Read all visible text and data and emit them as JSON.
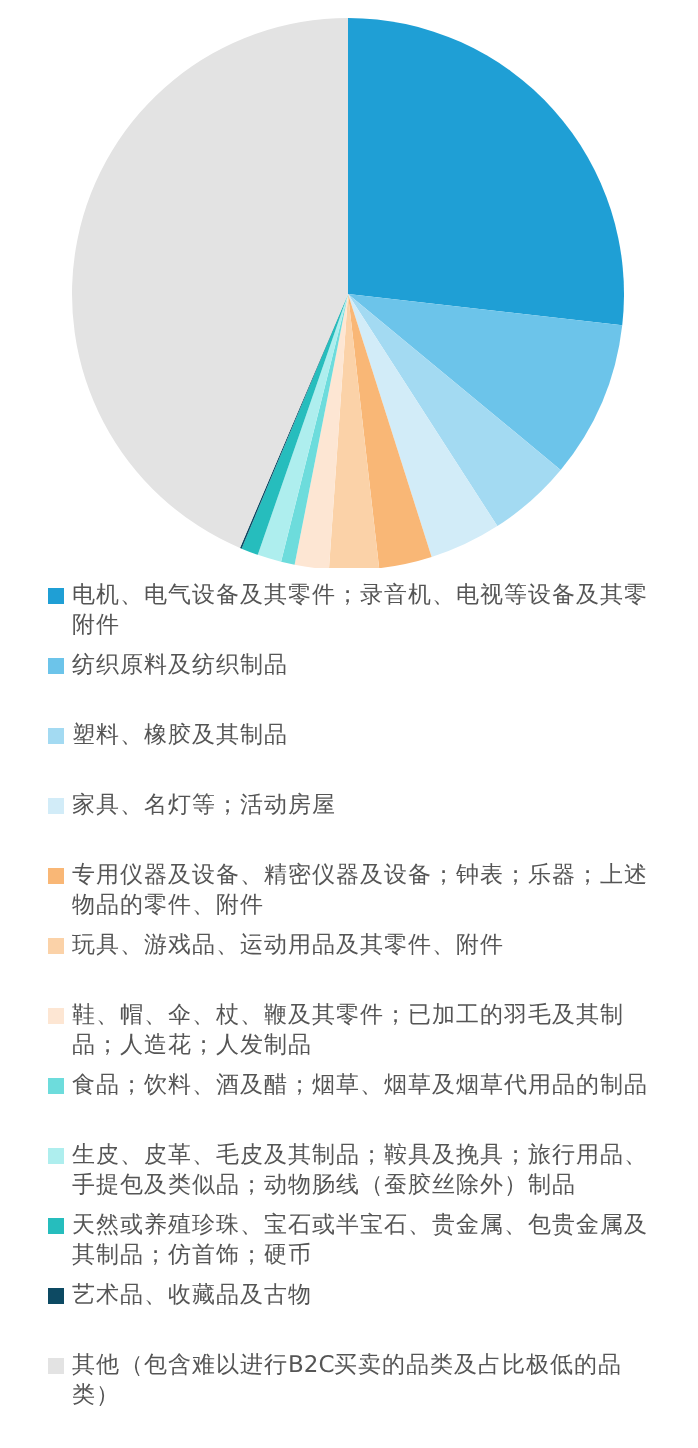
{
  "chart_data": {
    "type": "pie",
    "legend": "bottom",
    "categories": [
      "电机、电气设备及其零件；录音机、电视等设备及其零附件",
      "纺织原料及纺织制品",
      "塑料、橡胶及其制品",
      "家具、名灯等；活动房屋",
      "专用仪器及设备、精密仪器及设备；钟表；乐器；上述物品的零件、附件",
      "玩具、游戏品、运动用品及其零件、附件",
      "鞋、帽、伞、杖、鞭及其零件；已加工的羽毛及其制品；人造花；人发制品",
      "食品；饮料、酒及醋；烟草、烟草及烟草代用品的制品",
      "生皮、皮革、毛皮及其制品；鞍具及挽具；旅行用品、手提包及类似品；动物肠线（蚕胶丝除外）制品",
      "天然或养殖珍珠、宝石或半宝石、贵金属、包贵金属及其制品；仿首饰；硬币",
      "艺术品、收藏品及古物",
      "其他（包含难以进行B2C买卖的品类及占比极低的品类）"
    ],
    "values": [
      26.8,
      9.2,
      4.9,
      4.2,
      3.1,
      2.9,
      2.0,
      0.8,
      1.4,
      1.0,
      0.1,
      43.6
    ],
    "colors": [
      "#1f9fd5",
      "#6cc4ea",
      "#a3daf2",
      "#d2ecf8",
      "#f9b776",
      "#fbd2a8",
      "#fde6d3",
      "#6ddcdc",
      "#aeeeee",
      "#26bdbd",
      "#0d4a63",
      "#e3e3e3"
    ]
  }
}
